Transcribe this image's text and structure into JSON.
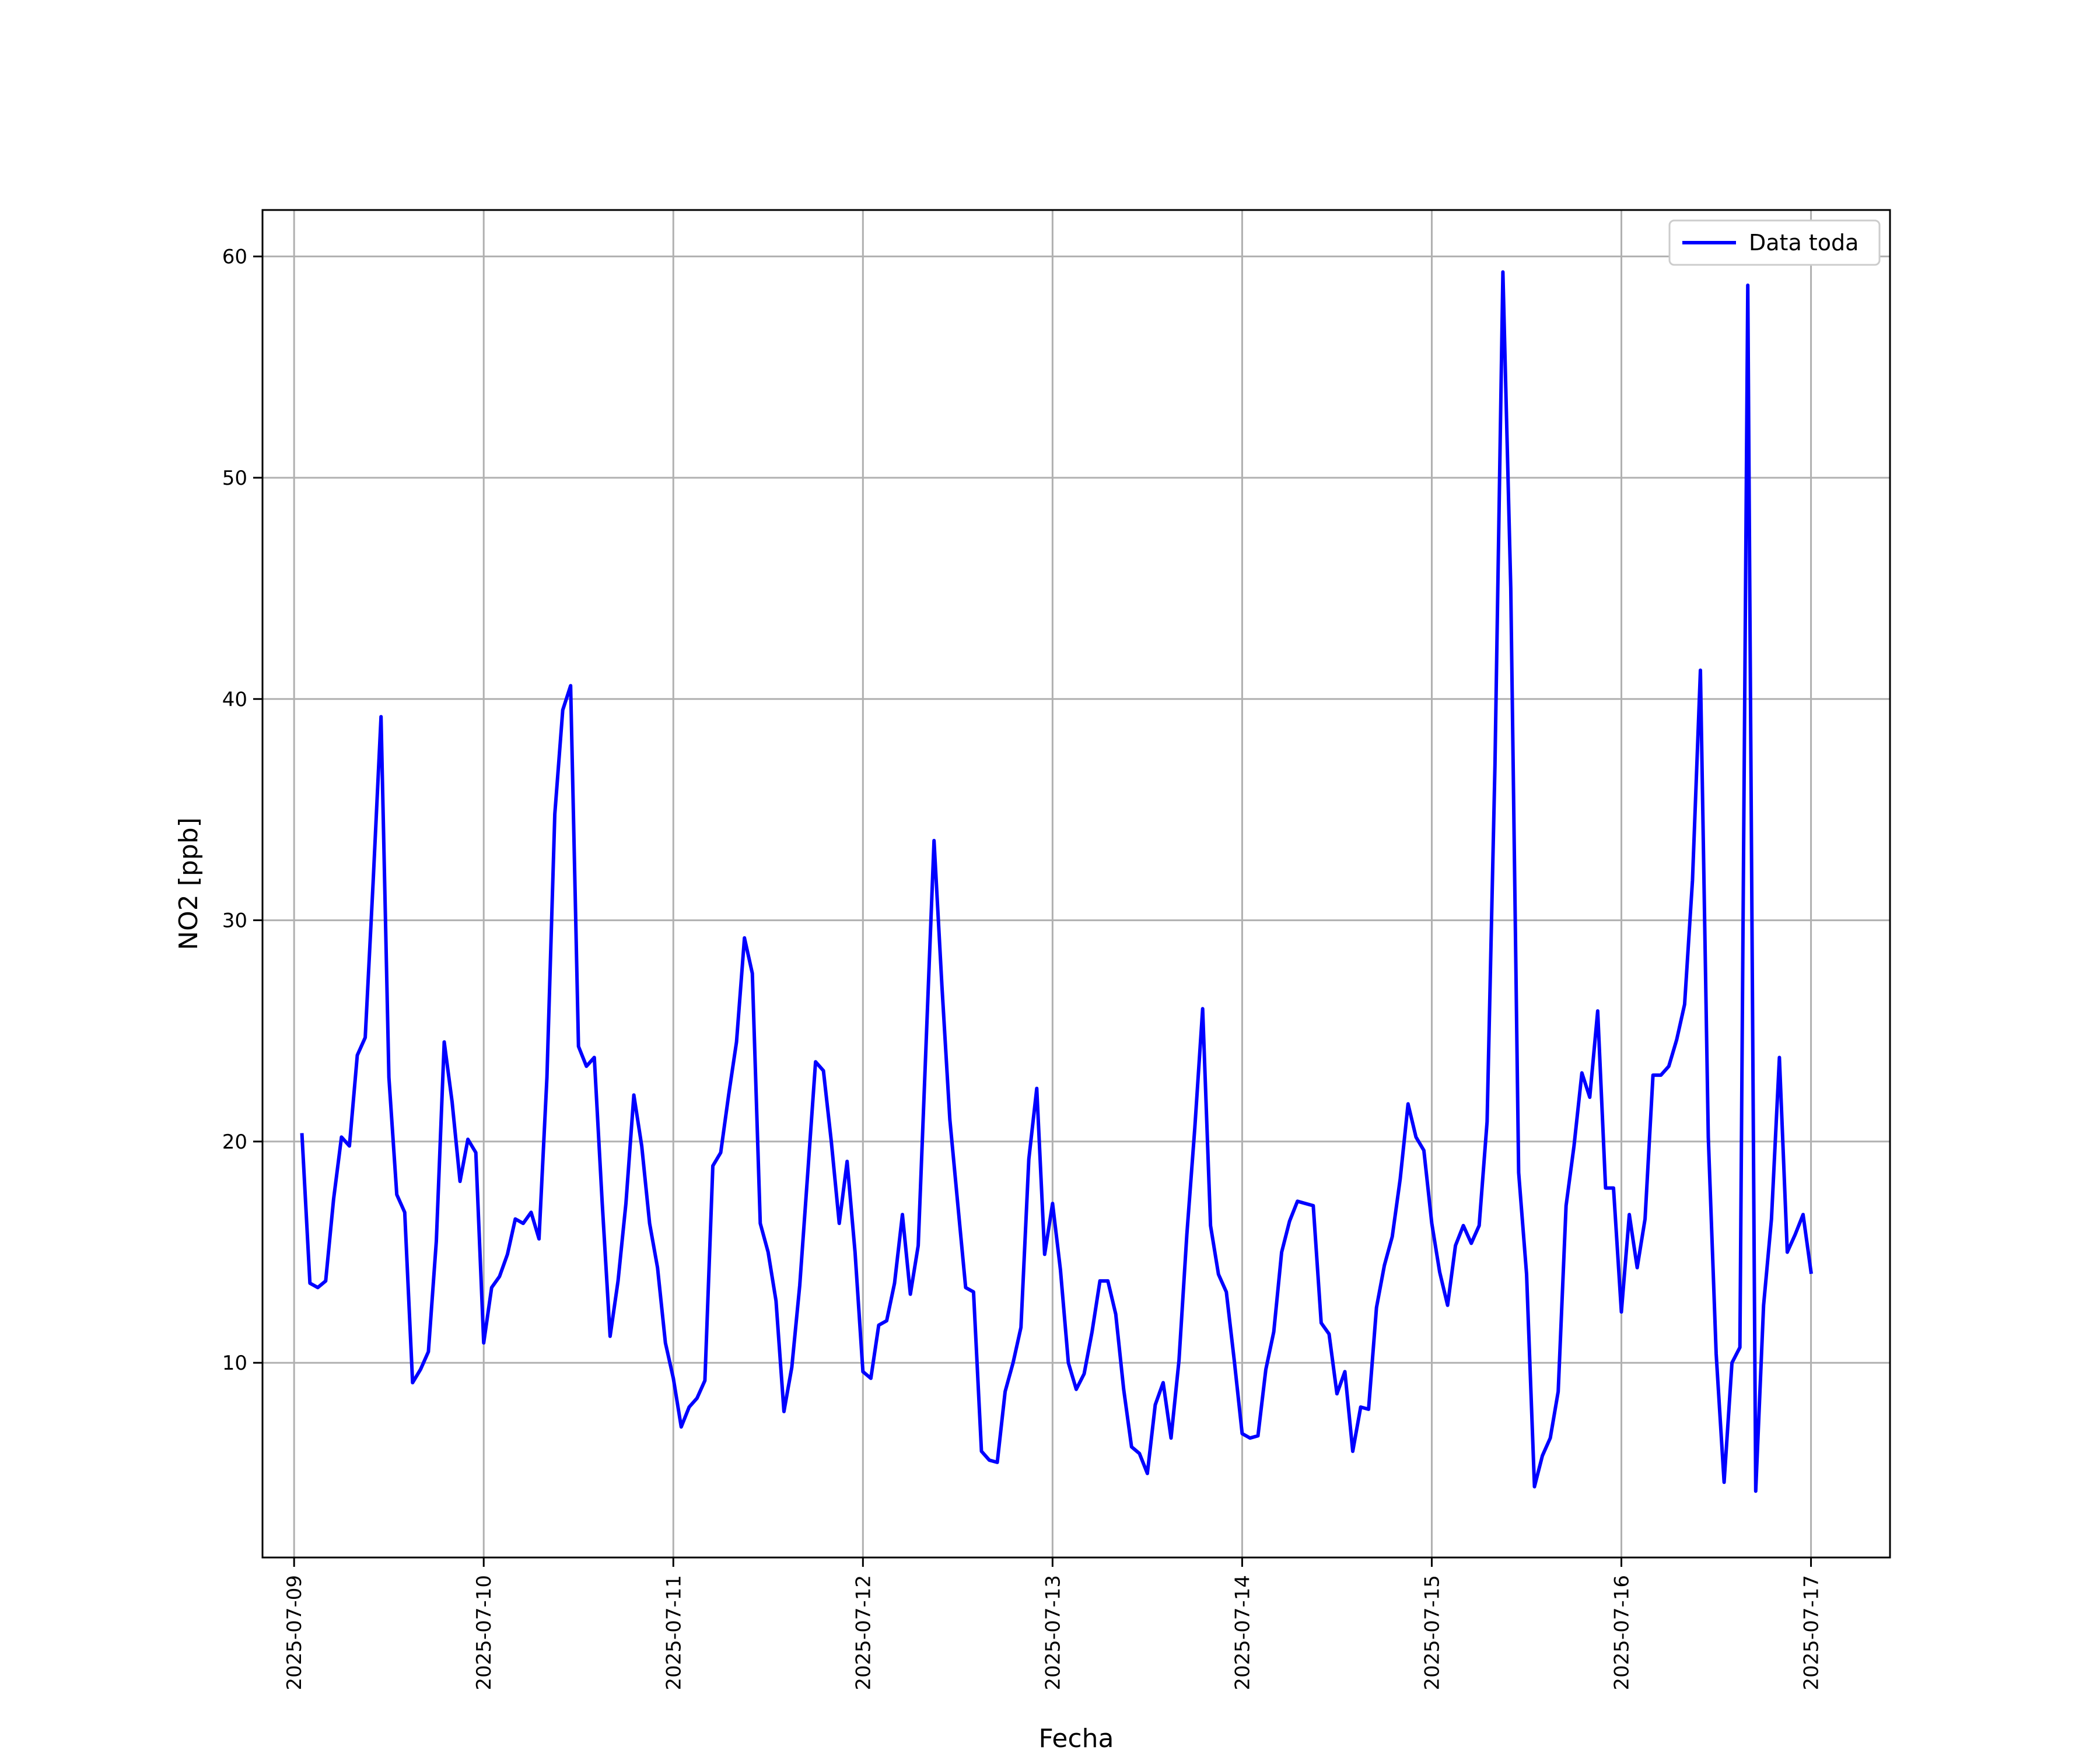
{
  "chart_data": {
    "type": "line",
    "title": "",
    "xlabel": "Fecha",
    "ylabel": "NO2 [ppb]",
    "x_tick_labels": [
      "2025-07-09",
      "2025-07-10",
      "2025-07-11",
      "2025-07-12",
      "2025-07-13",
      "2025-07-14",
      "2025-07-15",
      "2025-07-16",
      "2025-07-17"
    ],
    "y_ticks": [
      10,
      20,
      30,
      40,
      50,
      60
    ],
    "xlim": [
      "2025-07-08T20:00",
      "2025-07-17T10:00"
    ],
    "ylim": [
      1.2,
      62.1
    ],
    "grid": true,
    "legend_position": "top-right",
    "colors": {
      "series": "#0000ff",
      "grid": "#b0b0b0"
    },
    "series": [
      {
        "name": "Data toda",
        "points": [
          [
            "2025-07-09T01:00",
            20.3
          ],
          [
            "2025-07-09T02:00",
            13.6
          ],
          [
            "2025-07-09T03:00",
            13.4
          ],
          [
            "2025-07-09T04:00",
            13.7
          ],
          [
            "2025-07-09T05:00",
            17.4
          ],
          [
            "2025-07-09T06:00",
            20.2
          ],
          [
            "2025-07-09T07:00",
            19.8
          ],
          [
            "2025-07-09T08:00",
            23.9
          ],
          [
            "2025-07-09T09:00",
            24.7
          ],
          [
            "2025-07-09T10:00",
            31.7
          ],
          [
            "2025-07-09T11:00",
            39.2
          ],
          [
            "2025-07-09T12:00",
            22.9
          ],
          [
            "2025-07-09T13:00",
            17.6
          ],
          [
            "2025-07-09T14:00",
            16.8
          ],
          [
            "2025-07-09T15:00",
            9.1
          ],
          [
            "2025-07-09T16:00",
            9.7
          ],
          [
            "2025-07-09T17:00",
            10.5
          ],
          [
            "2025-07-09T18:00",
            15.5
          ],
          [
            "2025-07-09T19:00",
            24.5
          ],
          [
            "2025-07-09T20:00",
            21.8
          ],
          [
            "2025-07-09T21:00",
            18.2
          ],
          [
            "2025-07-09T22:00",
            20.1
          ],
          [
            "2025-07-09T23:00",
            19.5
          ],
          [
            "2025-07-10T00:00",
            10.9
          ],
          [
            "2025-07-10T01:00",
            13.4
          ],
          [
            "2025-07-10T02:00",
            13.9
          ],
          [
            "2025-07-10T03:00",
            14.9
          ],
          [
            "2025-07-10T04:00",
            16.5
          ],
          [
            "2025-07-10T05:00",
            16.3
          ],
          [
            "2025-07-10T06:00",
            16.8
          ],
          [
            "2025-07-10T07:00",
            15.6
          ],
          [
            "2025-07-10T08:00",
            22.9
          ],
          [
            "2025-07-10T09:00",
            34.8
          ],
          [
            "2025-07-10T10:00",
            39.5
          ],
          [
            "2025-07-10T11:00",
            40.6
          ],
          [
            "2025-07-10T12:00",
            24.3
          ],
          [
            "2025-07-10T13:00",
            23.4
          ],
          [
            "2025-07-10T14:00",
            23.8
          ],
          [
            "2025-07-10T15:00",
            17.2
          ],
          [
            "2025-07-10T16:00",
            11.2
          ],
          [
            "2025-07-10T17:00",
            13.7
          ],
          [
            "2025-07-10T18:00",
            17.2
          ],
          [
            "2025-07-10T19:00",
            22.1
          ],
          [
            "2025-07-10T20:00",
            19.8
          ],
          [
            "2025-07-10T21:00",
            16.3
          ],
          [
            "2025-07-10T22:00",
            14.3
          ],
          [
            "2025-07-10T23:00",
            10.9
          ],
          [
            "2025-07-11T00:00",
            9.3
          ],
          [
            "2025-07-11T01:00",
            7.1
          ],
          [
            "2025-07-11T02:00",
            8.0
          ],
          [
            "2025-07-11T03:00",
            8.4
          ],
          [
            "2025-07-11T04:00",
            9.2
          ],
          [
            "2025-07-11T05:00",
            18.9
          ],
          [
            "2025-07-11T06:00",
            19.5
          ],
          [
            "2025-07-11T07:00",
            22.1
          ],
          [
            "2025-07-11T08:00",
            24.5
          ],
          [
            "2025-07-11T09:00",
            29.2
          ],
          [
            "2025-07-11T10:00",
            27.6
          ],
          [
            "2025-07-11T11:00",
            16.3
          ],
          [
            "2025-07-11T12:00",
            15.0
          ],
          [
            "2025-07-11T13:00",
            12.8
          ],
          [
            "2025-07-11T14:00",
            7.8
          ],
          [
            "2025-07-11T15:00",
            9.8
          ],
          [
            "2025-07-11T16:00",
            13.5
          ],
          [
            "2025-07-11T17:00",
            18.5
          ],
          [
            "2025-07-11T18:00",
            23.6
          ],
          [
            "2025-07-11T19:00",
            23.2
          ],
          [
            "2025-07-11T20:00",
            20.0
          ],
          [
            "2025-07-11T21:00",
            16.3
          ],
          [
            "2025-07-11T22:00",
            19.1
          ],
          [
            "2025-07-11T23:00",
            15.0
          ],
          [
            "2025-07-12T00:00",
            9.6
          ],
          [
            "2025-07-12T01:00",
            9.3
          ],
          [
            "2025-07-12T02:00",
            11.7
          ],
          [
            "2025-07-12T03:00",
            11.9
          ],
          [
            "2025-07-12T04:00",
            13.6
          ],
          [
            "2025-07-12T05:00",
            16.7
          ],
          [
            "2025-07-12T06:00",
            13.1
          ],
          [
            "2025-07-12T07:00",
            15.3
          ],
          [
            "2025-07-12T08:00",
            24.5
          ],
          [
            "2025-07-12T09:00",
            33.6
          ],
          [
            "2025-07-12T10:00",
            27.0
          ],
          [
            "2025-07-12T11:00",
            21.0
          ],
          [
            "2025-07-12T12:00",
            17.2
          ],
          [
            "2025-07-12T13:00",
            13.4
          ],
          [
            "2025-07-12T14:00",
            13.2
          ],
          [
            "2025-07-12T15:00",
            6.0
          ],
          [
            "2025-07-12T16:00",
            5.6
          ],
          [
            "2025-07-12T17:00",
            5.5
          ],
          [
            "2025-07-12T18:00",
            8.7
          ],
          [
            "2025-07-12T19:00",
            10.0
          ],
          [
            "2025-07-12T20:00",
            11.6
          ],
          [
            "2025-07-12T21:00",
            19.2
          ],
          [
            "2025-07-12T22:00",
            22.4
          ],
          [
            "2025-07-12T23:00",
            14.9
          ],
          [
            "2025-07-13T00:00",
            17.2
          ],
          [
            "2025-07-13T01:00",
            14.2
          ],
          [
            "2025-07-13T02:00",
            10.0
          ],
          [
            "2025-07-13T03:00",
            8.8
          ],
          [
            "2025-07-13T04:00",
            9.5
          ],
          [
            "2025-07-13T05:00",
            11.4
          ],
          [
            "2025-07-13T06:00",
            13.7
          ],
          [
            "2025-07-13T07:00",
            13.7
          ],
          [
            "2025-07-13T08:00",
            12.2
          ],
          [
            "2025-07-13T09:00",
            8.8
          ],
          [
            "2025-07-13T10:00",
            6.2
          ],
          [
            "2025-07-13T11:00",
            5.9
          ],
          [
            "2025-07-13T12:00",
            5.0
          ],
          [
            "2025-07-13T13:00",
            8.1
          ],
          [
            "2025-07-13T14:00",
            9.1
          ],
          [
            "2025-07-13T15:00",
            6.6
          ],
          [
            "2025-07-13T16:00",
            10.1
          ],
          [
            "2025-07-13T17:00",
            15.8
          ],
          [
            "2025-07-13T18:00",
            20.6
          ],
          [
            "2025-07-13T19:00",
            26.0
          ],
          [
            "2025-07-13T20:00",
            16.2
          ],
          [
            "2025-07-13T21:00",
            14.0
          ],
          [
            "2025-07-13T22:00",
            13.2
          ],
          [
            "2025-07-13T23:00",
            10.1
          ],
          [
            "2025-07-14T00:00",
            6.8
          ],
          [
            "2025-07-14T01:00",
            6.6
          ],
          [
            "2025-07-14T02:00",
            6.7
          ],
          [
            "2025-07-14T03:00",
            9.7
          ],
          [
            "2025-07-14T04:00",
            11.4
          ],
          [
            "2025-07-14T05:00",
            15.0
          ],
          [
            "2025-07-14T06:00",
            16.4
          ],
          [
            "2025-07-14T07:00",
            17.3
          ],
          [
            "2025-07-14T08:00",
            17.2
          ],
          [
            "2025-07-14T09:00",
            17.1
          ],
          [
            "2025-07-14T10:00",
            11.8
          ],
          [
            "2025-07-14T11:00",
            11.3
          ],
          [
            "2025-07-14T12:00",
            8.6
          ],
          [
            "2025-07-14T13:00",
            9.6
          ],
          [
            "2025-07-14T14:00",
            6.0
          ],
          [
            "2025-07-14T15:00",
            8.0
          ],
          [
            "2025-07-14T16:00",
            7.9
          ],
          [
            "2025-07-14T17:00",
            12.5
          ],
          [
            "2025-07-14T18:00",
            14.4
          ],
          [
            "2025-07-14T19:00",
            15.7
          ],
          [
            "2025-07-14T20:00",
            18.3
          ],
          [
            "2025-07-14T21:00",
            21.7
          ],
          [
            "2025-07-14T22:00",
            20.2
          ],
          [
            "2025-07-14T23:00",
            19.6
          ],
          [
            "2025-07-15T00:00",
            16.3
          ],
          [
            "2025-07-15T01:00",
            14.1
          ],
          [
            "2025-07-15T02:00",
            12.6
          ],
          [
            "2025-07-15T03:00",
            15.3
          ],
          [
            "2025-07-15T04:00",
            16.2
          ],
          [
            "2025-07-15T05:00",
            15.4
          ],
          [
            "2025-07-15T06:00",
            16.2
          ],
          [
            "2025-07-15T07:00",
            20.9
          ],
          [
            "2025-07-15T08:00",
            37.0
          ],
          [
            "2025-07-15T09:00",
            59.3
          ],
          [
            "2025-07-15T10:00",
            45.0
          ],
          [
            "2025-07-15T11:00",
            18.6
          ],
          [
            "2025-07-15T12:00",
            14.0
          ],
          [
            "2025-07-15T13:00",
            4.4
          ],
          [
            "2025-07-15T14:00",
            5.8
          ],
          [
            "2025-07-15T15:00",
            6.6
          ],
          [
            "2025-07-15T16:00",
            8.7
          ],
          [
            "2025-07-15T17:00",
            17.1
          ],
          [
            "2025-07-15T18:00",
            19.8
          ],
          [
            "2025-07-15T19:00",
            23.1
          ],
          [
            "2025-07-15T20:00",
            22.0
          ],
          [
            "2025-07-15T21:00",
            25.9
          ],
          [
            "2025-07-15T22:00",
            17.9
          ],
          [
            "2025-07-15T23:00",
            17.9
          ],
          [
            "2025-07-16T00:00",
            12.3
          ],
          [
            "2025-07-16T01:00",
            16.7
          ],
          [
            "2025-07-16T02:00",
            14.3
          ],
          [
            "2025-07-16T03:00",
            16.5
          ],
          [
            "2025-07-16T04:00",
            23.0
          ],
          [
            "2025-07-16T05:00",
            23.0
          ],
          [
            "2025-07-16T06:00",
            23.4
          ],
          [
            "2025-07-16T07:00",
            24.6
          ],
          [
            "2025-07-16T08:00",
            26.2
          ],
          [
            "2025-07-16T09:00",
            31.8
          ],
          [
            "2025-07-16T10:00",
            41.3
          ],
          [
            "2025-07-16T11:00",
            20.2
          ],
          [
            "2025-07-16T12:00",
            10.4
          ],
          [
            "2025-07-16T13:00",
            4.6
          ],
          [
            "2025-07-16T14:00",
            10.0
          ],
          [
            "2025-07-16T15:00",
            10.7
          ],
          [
            "2025-07-16T16:00",
            58.7
          ],
          [
            "2025-07-16T17:00",
            4.2
          ],
          [
            "2025-07-16T18:00",
            12.6
          ],
          [
            "2025-07-16T19:00",
            16.5
          ],
          [
            "2025-07-16T20:00",
            23.8
          ],
          [
            "2025-07-16T21:00",
            15.0
          ],
          [
            "2025-07-16T22:00",
            15.8
          ],
          [
            "2025-07-16T23:00",
            16.7
          ],
          [
            "2025-07-17T00:00",
            14.1
          ]
        ]
      }
    ]
  }
}
